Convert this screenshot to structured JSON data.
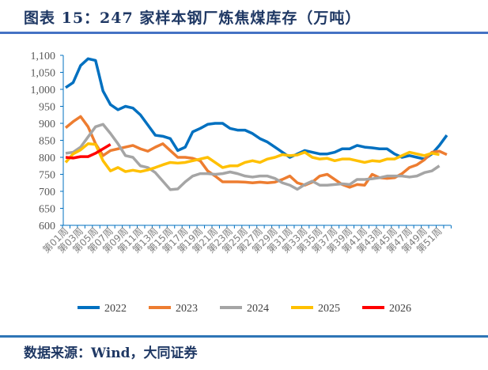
{
  "title": "图表 15：247 家样本钢厂炼焦煤库存（万吨）",
  "source": "数据来源：Wind，大同证券",
  "chart_data": {
    "type": "line",
    "title": "247 家样本钢厂炼焦煤库存（万吨）",
    "ylim": [
      600,
      1100
    ],
    "yticks": [
      600,
      650,
      700,
      750,
      800,
      850,
      900,
      950,
      "1,000",
      "1,050",
      "1,100"
    ],
    "ytick_values": [
      600,
      650,
      700,
      750,
      800,
      850,
      900,
      950,
      1000,
      1050,
      1100
    ],
    "xlabels": [
      "第01周",
      "第03周",
      "第05周",
      "第07周",
      "第09周",
      "第11周",
      "第13周",
      "第15周",
      "第17周",
      "第19周",
      "第21周",
      "第23周",
      "第25周",
      "第27周",
      "第29周",
      "第31周",
      "第33周",
      "第35周",
      "第37周",
      "第39周",
      "第41周",
      "第43周",
      "第45周",
      "第47周",
      "第49周",
      "第51周"
    ],
    "legend_position": "bottom",
    "series": [
      {
        "name": "2022",
        "color": "#0070c0",
        "values": [
          1005,
          1020,
          1070,
          1090,
          1085,
          995,
          955,
          940,
          950,
          945,
          925,
          895,
          865,
          862,
          855,
          820,
          830,
          875,
          885,
          897,
          900,
          900,
          885,
          880,
          880,
          870,
          855,
          845,
          830,
          815,
          800,
          810,
          820,
          815,
          810,
          810,
          815,
          825,
          825,
          835,
          830,
          828,
          825,
          825,
          810,
          800,
          805,
          800,
          795,
          810,
          835,
          865
        ]
      },
      {
        "name": "2023",
        "color": "#ed7d31",
        "values": [
          887,
          905,
          920,
          890,
          840,
          805,
          820,
          825,
          830,
          835,
          825,
          818,
          830,
          840,
          820,
          800,
          800,
          797,
          790,
          760,
          745,
          728,
          728,
          728,
          727,
          725,
          727,
          725,
          727,
          735,
          745,
          725,
          718,
          727,
          745,
          750,
          735,
          720,
          712,
          720,
          718,
          750,
          740,
          738,
          740,
          752,
          770,
          778,
          793,
          815,
          818,
          808
        ]
      },
      {
        "name": "2024",
        "color": "#a5a5a5",
        "values": [
          812,
          815,
          830,
          860,
          890,
          897,
          870,
          840,
          805,
          800,
          775,
          770,
          755,
          730,
          705,
          707,
          728,
          745,
          752,
          752,
          750,
          752,
          757,
          752,
          745,
          742,
          745,
          745,
          738,
          725,
          718,
          706,
          720,
          730,
          718,
          718,
          720,
          722,
          720,
          735,
          735,
          737,
          740,
          745,
          745,
          745,
          742,
          745,
          755,
          760,
          775
        ]
      },
      {
        "name": "2025",
        "color": "#ffc000",
        "values": [
          785,
          810,
          822,
          840,
          838,
          790,
          760,
          770,
          758,
          762,
          758,
          763,
          770,
          778,
          785,
          783,
          785,
          790,
          795,
          800,
          785,
          770,
          775,
          775,
          785,
          790,
          785,
          795,
          800,
          808,
          805,
          807,
          815,
          800,
          795,
          797,
          790,
          795,
          795,
          790,
          785,
          790,
          788,
          795,
          795,
          805,
          815,
          810,
          805,
          812,
          808
        ]
      },
      {
        "name": "2026",
        "color": "#ff0000",
        "values": [
          800,
          798,
          802,
          802,
          812,
          825,
          838
        ]
      }
    ]
  }
}
